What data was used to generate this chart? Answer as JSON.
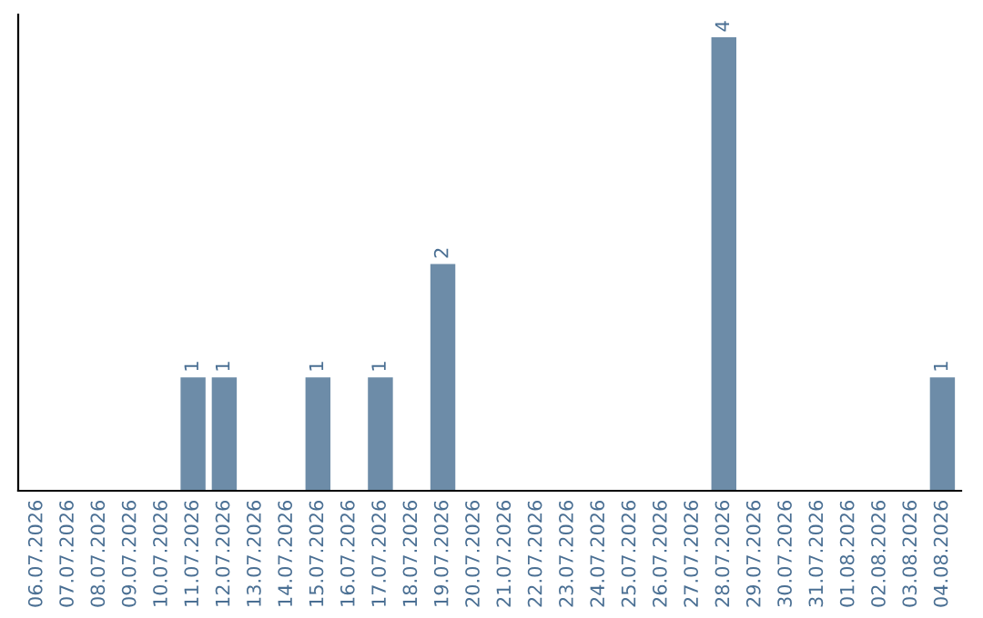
{
  "chart_data": {
    "type": "bar",
    "categories": [
      "06.07.2026",
      "07.07.2026",
      "08.07.2026",
      "09.07.2026",
      "10.07.2026",
      "11.07.2026",
      "12.07.2026",
      "13.07.2026",
      "14.07.2026",
      "15.07.2026",
      "16.07.2026",
      "17.07.2026",
      "18.07.2026",
      "19.07.2026",
      "20.07.2026",
      "21.07.2026",
      "22.07.2026",
      "23.07.2026",
      "24.07.2026",
      "25.07.2026",
      "26.07.2026",
      "27.07.2026",
      "28.07.2026",
      "29.07.2026",
      "30.07.2026",
      "31.07.2026",
      "01.08.2026",
      "02.08.2026",
      "03.08.2026",
      "04.08.2026"
    ],
    "values": [
      0,
      0,
      0,
      0,
      0,
      1,
      1,
      0,
      0,
      1,
      0,
      1,
      0,
      2,
      0,
      0,
      0,
      0,
      0,
      0,
      0,
      0,
      4,
      0,
      0,
      0,
      0,
      0,
      0,
      1
    ],
    "value_labels": [
      null,
      null,
      null,
      null,
      null,
      "1",
      "1",
      null,
      null,
      "1",
      null,
      "1",
      null,
      "2",
      null,
      null,
      null,
      null,
      null,
      null,
      null,
      null,
      "4",
      null,
      null,
      null,
      null,
      null,
      null,
      "1"
    ],
    "color": "#6d8ca8",
    "tick_labels": "x",
    "grid": false,
    "legend": false
  }
}
